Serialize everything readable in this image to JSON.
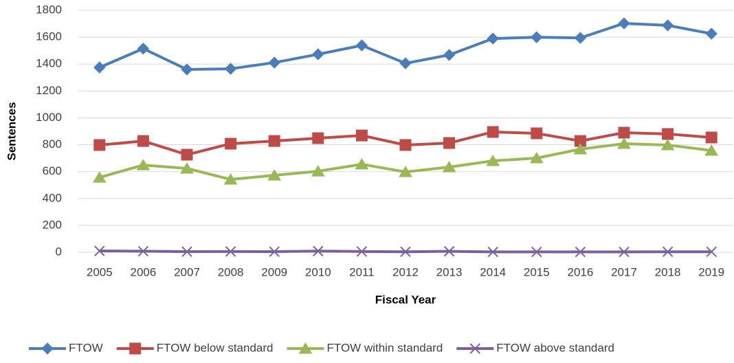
{
  "chart_data": {
    "type": "line",
    "x_label": "Fiscal Year",
    "y_label": "Sentences",
    "categories": [
      "2005",
      "2006",
      "2007",
      "2008",
      "2009",
      "2010",
      "2011",
      "2012",
      "2013",
      "2014",
      "2015",
      "2016",
      "2017",
      "2018",
      "2019"
    ],
    "series": [
      {
        "name": "FTOW",
        "color": "#4a7ebb",
        "marker": "diamond",
        "values": [
          1375,
          1515,
          1360,
          1365,
          1411,
          1473,
          1539,
          1406,
          1468,
          1590,
          1600,
          1595,
          1703,
          1688,
          1626
        ]
      },
      {
        "name": "FTOW below standard",
        "color": "#be4b48",
        "marker": "square",
        "values": [
          798,
          828,
          726,
          808,
          828,
          849,
          869,
          798,
          813,
          895,
          885,
          828,
          890,
          880,
          854
        ]
      },
      {
        "name": "FTOW within standard",
        "color": "#98b954",
        "marker": "triangle",
        "values": [
          557,
          649,
          624,
          542,
          573,
          603,
          655,
          598,
          634,
          680,
          701,
          767,
          808,
          798,
          757
        ]
      },
      {
        "name": "FTOW above standard",
        "color": "#7d5fa0",
        "marker": "x",
        "values": [
          10,
          8,
          5,
          6,
          5,
          9,
          6,
          4,
          7,
          3,
          3,
          3,
          3,
          4,
          4
        ]
      }
    ],
    "ylim": [
      0,
      1800
    ],
    "yticks": [
      0,
      200,
      400,
      600,
      800,
      1000,
      1200,
      1400,
      1600,
      1800
    ],
    "grid": true,
    "legend": "bottom"
  }
}
